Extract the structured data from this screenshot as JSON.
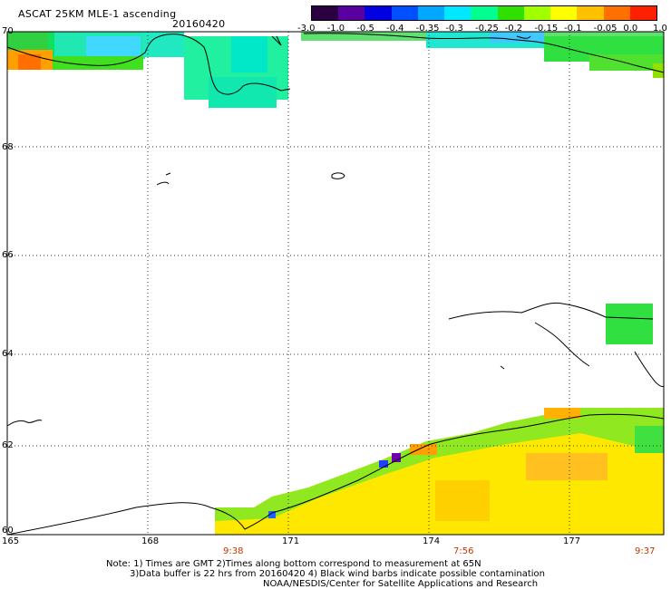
{
  "header": {
    "title": "ASCAT 25KM MLE-1 ascending",
    "date": "20160420"
  },
  "colorbar": {
    "labels": [
      "-3.0",
      "-1.0",
      "-0.5",
      "-0.4",
      "-0.35",
      "-0.3",
      "-0.25",
      "-0.2",
      "-0.15",
      "-0.1",
      "-0.05",
      "0.0",
      "1.0"
    ],
    "colors": [
      "#2a0040",
      "#5a00a0",
      "#0000e0",
      "#0050ff",
      "#00a8ff",
      "#00e8ff",
      "#00ff90",
      "#30e000",
      "#a0ff00",
      "#ffff00",
      "#ffc000",
      "#ff7000",
      "#ff2000"
    ]
  },
  "map": {
    "lat_labels": [
      "70",
      "68",
      "66",
      "64",
      "62",
      "60"
    ],
    "lon_labels": [
      "165",
      "168",
      "171",
      "174",
      "177"
    ],
    "time_labels": [
      "9:38",
      "7:56",
      "9:37"
    ]
  },
  "footer": {
    "line1": "Note: 1) Times are GMT 2)Times along bottom correspond to measurement at 65N",
    "line2": "3)Data buffer is 22 hrs from 20160420 4) Black wind barbs indicate possible contamination",
    "line3": "NOAA/NESDIS/Center for Satellite Applications and Research"
  }
}
